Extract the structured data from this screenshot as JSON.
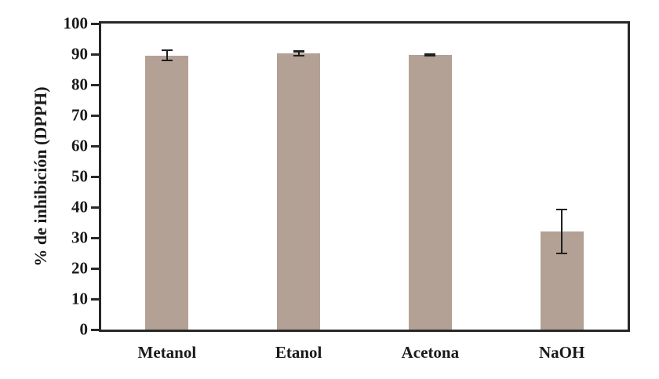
{
  "chart_data": {
    "type": "bar",
    "title": "",
    "categories": [
      "Metanol",
      "Etanol",
      "Acetona",
      "NaOH"
    ],
    "values": [
      89.6,
      90.2,
      89.8,
      32.0
    ],
    "errors": [
      2.0,
      1.0,
      0.5,
      7.5
    ],
    "xlabel": "",
    "ylabel": "% de inhibición (DPPH)",
    "ylim": [
      0,
      100
    ],
    "yticks": [
      0,
      10,
      20,
      30,
      40,
      50,
      60,
      70,
      80,
      90,
      100
    ],
    "grid": false,
    "legend": false,
    "bar_color": "#b3a195",
    "axis_color": "#282828",
    "error_color": "#1f1f1f",
    "background_color": "#ffffff"
  }
}
